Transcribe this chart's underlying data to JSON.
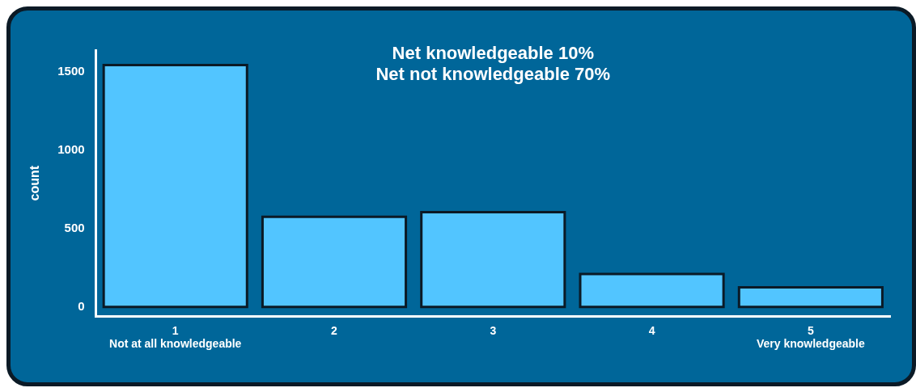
{
  "chart_data": {
    "type": "bar",
    "title": "Net knowledgeable 10%",
    "subtitle": "Net not knowledgeable 70%",
    "ylabel": "count",
    "categories": [
      "1\nNot at all knowledgeable",
      "2",
      "3",
      "4",
      "5\nVery knowledgeable"
    ],
    "values": [
      1545,
      575,
      605,
      210,
      125
    ],
    "color": "#52c5ff",
    "ylim": [
      -60,
      1640
    ],
    "yticks": [
      0,
      500,
      1000,
      1500
    ],
    "grid": false,
    "legend": false
  }
}
